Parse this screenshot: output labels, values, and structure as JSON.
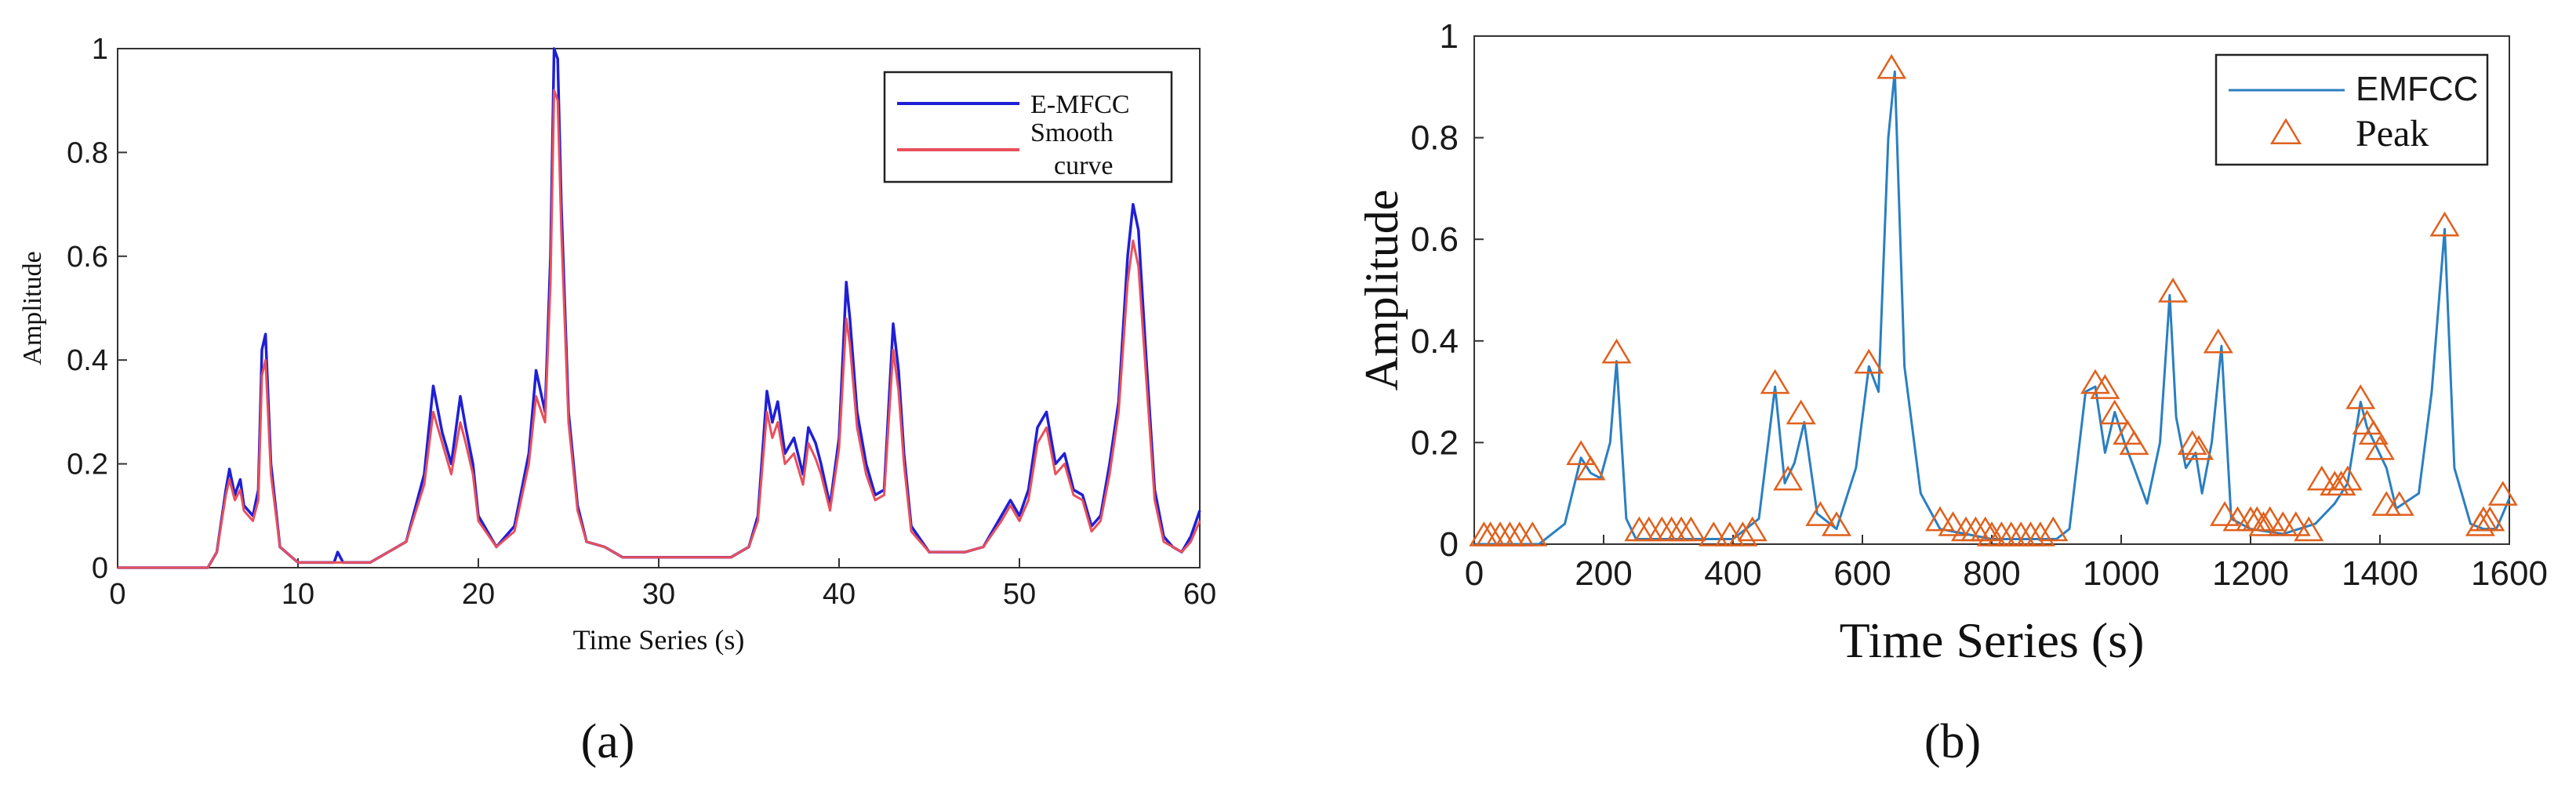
{
  "chart_data": [
    {
      "type": "line",
      "panel_label": "(a)",
      "xlabel": "Time Series (s)",
      "ylabel": "Amplitude",
      "xlim": [
        0,
        60
      ],
      "ylim": [
        0,
        1
      ],
      "xticks": [
        "0",
        "10",
        "20",
        "30",
        "40",
        "50",
        "60"
      ],
      "yticks": [
        "0",
        "0.2",
        "0.4",
        "0.6",
        "0.8",
        "1"
      ],
      "grid": false,
      "legend": {
        "placement": "top-right",
        "entries": [
          "E-MFCC",
          "Smooth curve"
        ],
        "smooth_line1": "Smooth",
        "smooth_line2": "curve"
      },
      "colors": {
        "E-MFCC": "#1f1fd6",
        "Smooth curve": "#e8505b"
      },
      "series": [
        {
          "name": "E-MFCC",
          "x": [
            0,
            5,
            5.5,
            6,
            6.2,
            6.5,
            6.8,
            7,
            7.5,
            7.8,
            8,
            8.2,
            8.5,
            9,
            10,
            11,
            12,
            12.2,
            12.5,
            14,
            16,
            17,
            17.5,
            18,
            18.5,
            19,
            19.3,
            19.7,
            20,
            21,
            22,
            22.8,
            23.2,
            23.7,
            24,
            24.2,
            24.4,
            24.6,
            25,
            25.5,
            26,
            27,
            28,
            30,
            34,
            35,
            35.5,
            36,
            36.3,
            36.6,
            37,
            37.5,
            38,
            38.3,
            38.7,
            39,
            39.5,
            40,
            40.4,
            40.6,
            41,
            41.5,
            42,
            42.5,
            43,
            43.3,
            43.6,
            44,
            45,
            46,
            47,
            48,
            49,
            49.5,
            50,
            50.5,
            51,
            51.5,
            52,
            52.5,
            53,
            53.5,
            54,
            54.5,
            55,
            55.5,
            56,
            56.3,
            56.6,
            57,
            57.5,
            58,
            58.5,
            59,
            59.5,
            60
          ],
          "y": [
            0,
            0,
            0.03,
            0.15,
            0.19,
            0.14,
            0.17,
            0.12,
            0.1,
            0.15,
            0.42,
            0.45,
            0.2,
            0.04,
            0.01,
            0.01,
            0.01,
            0.03,
            0.01,
            0.01,
            0.05,
            0.18,
            0.35,
            0.26,
            0.2,
            0.33,
            0.27,
            0.2,
            0.1,
            0.04,
            0.08,
            0.22,
            0.38,
            0.3,
            0.6,
            1.0,
            0.98,
            0.7,
            0.3,
            0.12,
            0.05,
            0.04,
            0.02,
            0.02,
            0.02,
            0.04,
            0.1,
            0.34,
            0.28,
            0.32,
            0.22,
            0.25,
            0.18,
            0.27,
            0.24,
            0.2,
            0.12,
            0.25,
            0.55,
            0.48,
            0.3,
            0.2,
            0.14,
            0.15,
            0.47,
            0.38,
            0.22,
            0.08,
            0.03,
            0.03,
            0.03,
            0.04,
            0.1,
            0.13,
            0.1,
            0.15,
            0.27,
            0.3,
            0.2,
            0.22,
            0.15,
            0.14,
            0.08,
            0.1,
            0.2,
            0.32,
            0.6,
            0.7,
            0.65,
            0.42,
            0.15,
            0.06,
            0.04,
            0.03,
            0.06,
            0.11
          ]
        },
        {
          "name": "Smooth curve",
          "x": [
            0,
            5,
            5.5,
            6,
            6.2,
            6.5,
            6.8,
            7,
            7.5,
            7.8,
            8,
            8.2,
            8.5,
            9,
            10,
            11,
            12,
            12.5,
            14,
            16,
            17,
            17.5,
            18,
            18.5,
            19,
            19.3,
            19.7,
            20,
            21,
            22,
            22.8,
            23.2,
            23.7,
            24,
            24.2,
            24.4,
            24.6,
            25,
            25.5,
            26,
            27,
            28,
            30,
            34,
            35,
            35.5,
            36,
            36.3,
            36.6,
            37,
            37.5,
            38,
            38.3,
            38.7,
            39,
            39.5,
            40,
            40.4,
            40.6,
            41,
            41.5,
            42,
            42.5,
            43,
            43.3,
            43.6,
            44,
            45,
            46,
            47,
            48,
            49,
            49.5,
            50,
            50.5,
            51,
            51.5,
            52,
            52.5,
            53,
            53.5,
            54,
            54.5,
            55,
            55.5,
            56,
            56.3,
            56.6,
            57,
            57.5,
            58,
            58.5,
            59,
            59.5,
            60
          ],
          "y": [
            0,
            0,
            0.03,
            0.14,
            0.17,
            0.13,
            0.15,
            0.11,
            0.09,
            0.13,
            0.37,
            0.4,
            0.18,
            0.04,
            0.01,
            0.01,
            0.01,
            0.01,
            0.01,
            0.05,
            0.16,
            0.3,
            0.24,
            0.18,
            0.28,
            0.24,
            0.18,
            0.09,
            0.04,
            0.07,
            0.2,
            0.33,
            0.28,
            0.55,
            0.92,
            0.9,
            0.65,
            0.28,
            0.11,
            0.05,
            0.04,
            0.02,
            0.02,
            0.02,
            0.04,
            0.09,
            0.3,
            0.25,
            0.28,
            0.2,
            0.22,
            0.16,
            0.24,
            0.21,
            0.18,
            0.11,
            0.23,
            0.48,
            0.43,
            0.27,
            0.18,
            0.13,
            0.14,
            0.42,
            0.34,
            0.2,
            0.07,
            0.03,
            0.03,
            0.03,
            0.04,
            0.09,
            0.12,
            0.09,
            0.13,
            0.24,
            0.27,
            0.18,
            0.2,
            0.14,
            0.13,
            0.07,
            0.09,
            0.18,
            0.3,
            0.55,
            0.63,
            0.58,
            0.38,
            0.13,
            0.05,
            0.04,
            0.03,
            0.05,
            0.09
          ]
        }
      ]
    },
    {
      "type": "line",
      "panel_label": "(b)",
      "xlabel": "Time Series (s)",
      "ylabel": "Amplitude",
      "xlim": [
        0,
        1600
      ],
      "ylim": [
        0,
        1
      ],
      "xticks": [
        "0",
        "200",
        "400",
        "600",
        "800",
        "1000",
        "1200",
        "1400",
        "1600"
      ],
      "yticks": [
        "0",
        "0.2",
        "0.4",
        "0.6",
        "0.8",
        "1"
      ],
      "grid": false,
      "legend": {
        "placement": "top-right",
        "entries": [
          "EMFCC",
          "Peak"
        ]
      },
      "colors": {
        "EMFCC": "#2a7fc1",
        "Peak": "#e0601d"
      },
      "series": [
        {
          "name": "EMFCC",
          "x": [
            0,
            100,
            140,
            165,
            180,
            195,
            210,
            220,
            235,
            250,
            300,
            400,
            440,
            465,
            480,
            495,
            510,
            530,
            560,
            590,
            610,
            625,
            640,
            650,
            665,
            690,
            720,
            800,
            900,
            920,
            945,
            960,
            975,
            990,
            1005,
            1020,
            1040,
            1060,
            1075,
            1085,
            1100,
            1115,
            1125,
            1140,
            1155,
            1170,
            1200,
            1250,
            1300,
            1330,
            1350,
            1370,
            1380,
            1395,
            1410,
            1425,
            1460,
            1480,
            1500,
            1515,
            1540,
            1560,
            1580,
            1600
          ],
          "y": [
            0,
            0,
            0.04,
            0.17,
            0.14,
            0.13,
            0.2,
            0.36,
            0.05,
            0.01,
            0.01,
            0.01,
            0.05,
            0.31,
            0.12,
            0.16,
            0.24,
            0.06,
            0.03,
            0.15,
            0.35,
            0.3,
            0.8,
            0.93,
            0.35,
            0.1,
            0.03,
            0.01,
            0.01,
            0.03,
            0.3,
            0.31,
            0.18,
            0.26,
            0.2,
            0.15,
            0.08,
            0.2,
            0.49,
            0.25,
            0.15,
            0.18,
            0.1,
            0.2,
            0.39,
            0.05,
            0.03,
            0.02,
            0.04,
            0.08,
            0.12,
            0.28,
            0.23,
            0.19,
            0.15,
            0.07,
            0.1,
            0.3,
            0.62,
            0.15,
            0.04,
            0.03,
            0.03,
            0.09
          ]
        },
        {
          "name": "Peak",
          "x": [
            15,
            25,
            40,
            55,
            70,
            90,
            165,
            180,
            220,
            255,
            270,
            290,
            305,
            320,
            335,
            370,
            395,
            415,
            430,
            465,
            485,
            505,
            535,
            560,
            610,
            645,
            720,
            740,
            760,
            775,
            790,
            800,
            815,
            830,
            845,
            860,
            875,
            895,
            960,
            975,
            990,
            1010,
            1020,
            1080,
            1110,
            1120,
            1150,
            1160,
            1180,
            1200,
            1210,
            1220,
            1230,
            1250,
            1270,
            1290,
            1310,
            1330,
            1340,
            1350,
            1370,
            1380,
            1390,
            1400,
            1410,
            1430,
            1500,
            1555,
            1560,
            1570,
            1590
          ],
          "y": [
            0.01,
            0.01,
            0.01,
            0.01,
            0.01,
            0.01,
            0.17,
            0.14,
            0.37,
            0.02,
            0.02,
            0.02,
            0.02,
            0.02,
            0.02,
            0.01,
            0.01,
            0.01,
            0.02,
            0.31,
            0.12,
            0.25,
            0.05,
            0.03,
            0.35,
            0.93,
            0.04,
            0.03,
            0.02,
            0.02,
            0.02,
            0.01,
            0.01,
            0.01,
            0.01,
            0.01,
            0.01,
            0.02,
            0.31,
            0.3,
            0.25,
            0.21,
            0.19,
            0.49,
            0.19,
            0.18,
            0.39,
            0.05,
            0.04,
            0.04,
            0.04,
            0.03,
            0.04,
            0.03,
            0.03,
            0.02,
            0.12,
            0.11,
            0.11,
            0.12,
            0.28,
            0.23,
            0.21,
            0.18,
            0.07,
            0.07,
            0.62,
            0.03,
            0.04,
            0.04,
            0.09
          ]
        }
      ]
    }
  ]
}
